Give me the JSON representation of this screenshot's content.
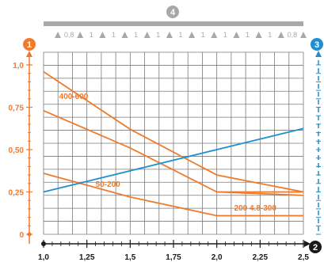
{
  "badges": {
    "left": "1",
    "right": "3",
    "top": "4",
    "bottom_right": "2"
  },
  "support_beam": {
    "labels": [
      "0,8",
      "1",
      "1",
      "1",
      "1",
      "1",
      "1",
      "1",
      "1",
      "1",
      "0,8"
    ]
  },
  "colors": {
    "orange": "#f07a2a",
    "blue": "#1e8fcf",
    "grid": "#7a7a7a",
    "gray": "#a8a8a8",
    "black": "#1a1a1a"
  },
  "chart_data": {
    "type": "line",
    "xlim": [
      1.0,
      2.5
    ],
    "ylim": [
      0,
      1.0
    ],
    "x_ticks": [
      1.0,
      1.25,
      1.5,
      1.75,
      2.0,
      2.25,
      2.5
    ],
    "x_tick_labels": [
      "1,0",
      "1,25",
      "1,5",
      "1,75",
      "2,0",
      "2,25",
      "2,5"
    ],
    "y_ticks": [
      0,
      0.25,
      0.5,
      0.75,
      1.0
    ],
    "y_tick_labels": [
      "0",
      "0,25",
      "0,50",
      "0,75",
      "1,0"
    ],
    "grid": true,
    "series": [
      {
        "name": "400-600",
        "color": "#f07a2a",
        "points": [
          [
            1.0,
            0.96
          ],
          [
            1.5,
            0.62
          ],
          [
            2.0,
            0.35
          ],
          [
            2.5,
            0.25
          ]
        ]
      },
      {
        "name": "",
        "color": "#f07a2a",
        "points": [
          [
            1.0,
            0.73
          ],
          [
            1.5,
            0.51
          ],
          [
            2.0,
            0.25
          ],
          [
            2.5,
            0.25
          ]
        ]
      },
      {
        "name": "50-200",
        "color": "#f07a2a",
        "points": [
          [
            1.0,
            0.36
          ],
          [
            1.5,
            0.22
          ],
          [
            2.0,
            0.11
          ],
          [
            2.5,
            0.11
          ]
        ]
      },
      {
        "name": "200 4.8-300",
        "color": "#f07a2a",
        "points": [
          [
            2.0,
            0.25
          ],
          [
            2.5,
            0.23
          ]
        ]
      },
      {
        "name": "",
        "color": "#1e8fcf",
        "points": [
          [
            1.0,
            0.25
          ],
          [
            2.5,
            0.625
          ]
        ]
      }
    ],
    "annotations": [
      {
        "text": "400-600",
        "x": 1.09,
        "y": 0.8
      },
      {
        "text": "50-200",
        "x": 1.3,
        "y": 0.28
      },
      {
        "text": "200 4.8-300",
        "x": 2.1,
        "y": 0.14
      }
    ]
  }
}
